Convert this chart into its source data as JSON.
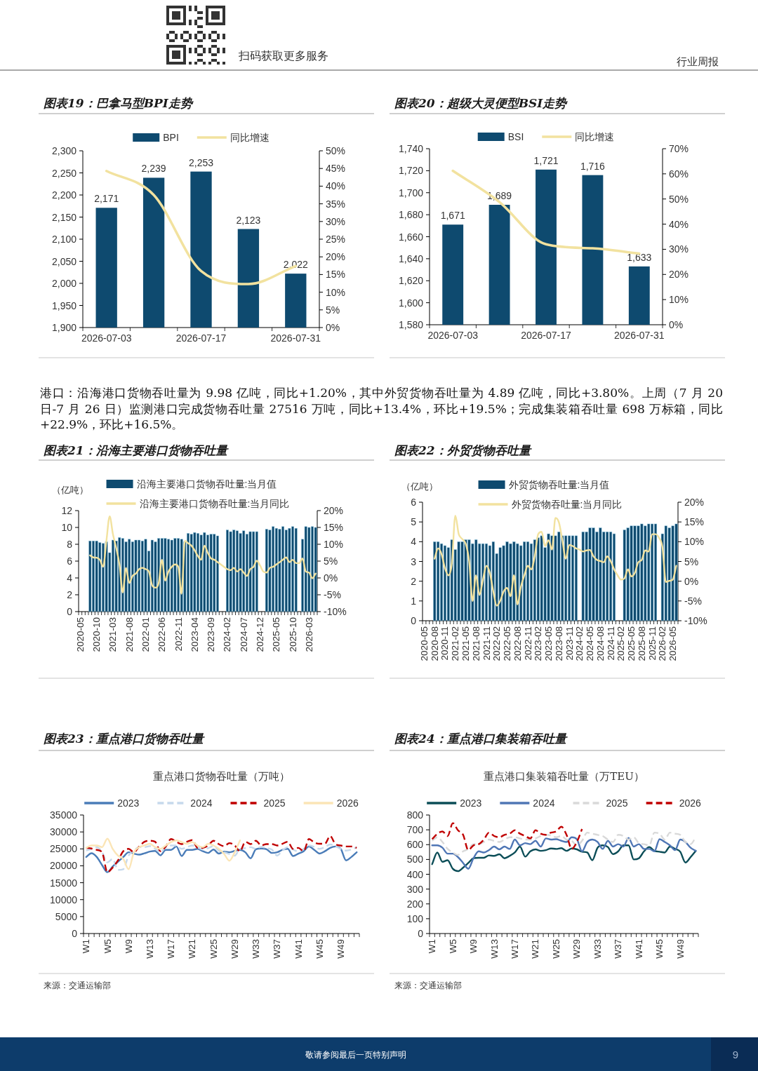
{
  "chart_data": [
    {
      "type": "other",
      "annotations": [
        "扫码获取更多服务",
        "行业周报"
      ]
    },
    {
      "type": "bar",
      "title": "图表19：巴拿马型BPI走势",
      "categories": [
        "2026-07-03",
        null,
        "2026-07-17",
        null,
        "2026-07-31"
      ],
      "series": [
        {
          "name": "BPI",
          "color": "#0e4a6f",
          "values": [
            2171,
            2239,
            2253,
            2123,
            2022
          ],
          "value_labels": [
            "2,171",
            "2,239",
            "2,253",
            "2,123",
            "2,022"
          ]
        },
        {
          "name": "同比增速",
          "type": "line",
          "axis": "y2",
          "color": "#f2e29f",
          "values": [
            44.3,
            37.5,
            16.0,
            12.3,
            17.4
          ]
        }
      ],
      "ylim": [
        1900,
        2300
      ],
      "yticks": [
        {
          "value": 1900,
          "label": "1,900"
        },
        {
          "value": 1950,
          "label": "1,950"
        },
        {
          "value": 2000,
          "label": "2,000"
        },
        {
          "value": 2050,
          "label": "2,050"
        },
        {
          "value": 2100,
          "label": "2,100"
        },
        {
          "value": 2150,
          "label": "2,150"
        },
        {
          "value": 2200,
          "label": "2,200"
        },
        {
          "value": 2250,
          "label": "2,250"
        },
        {
          "value": 2300,
          "label": "2,300"
        }
      ],
      "y2lim": [
        0,
        50
      ],
      "y2ticks": [
        {
          "value": 0,
          "label": "0%"
        },
        {
          "value": 5,
          "label": "5%"
        },
        {
          "value": 10,
          "label": "10%"
        },
        {
          "value": 15,
          "label": "15%"
        },
        {
          "value": 20,
          "label": "20%"
        },
        {
          "value": 25,
          "label": "25%"
        },
        {
          "value": 30,
          "label": "30%"
        },
        {
          "value": 35,
          "label": "35%"
        },
        {
          "value": 40,
          "label": "40%"
        },
        {
          "value": 45,
          "label": "45%"
        },
        {
          "value": 50,
          "label": "50%"
        }
      ],
      "legend": "top"
    },
    {
      "type": "bar",
      "title": "图表20：超级大灵便型BSI走势",
      "categories": [
        "2026-07-03",
        null,
        "2026-07-17",
        null,
        "2026-07-31"
      ],
      "series": [
        {
          "name": "BSI",
          "color": "#0e4a6f",
          "values": [
            1671,
            1689,
            1721,
            1716,
            1633
          ],
          "value_labels": [
            "1,671",
            "1,689",
            "1,721",
            "1,716",
            "1,633"
          ]
        },
        {
          "name": "同比增速",
          "type": "line",
          "axis": "y2",
          "color": "#f2e29f",
          "values": [
            61.2,
            48.8,
            32.0,
            30.4,
            28.3
          ]
        }
      ],
      "ylim": [
        1580,
        1740
      ],
      "yticks": [
        {
          "value": 1580,
          "label": "1,580"
        },
        {
          "value": 1600,
          "label": "1,600"
        },
        {
          "value": 1620,
          "label": "1,620"
        },
        {
          "value": 1640,
          "label": "1,640"
        },
        {
          "value": 1660,
          "label": "1,660"
        },
        {
          "value": 1680,
          "label": "1,680"
        },
        {
          "value": 1700,
          "label": "1,700"
        },
        {
          "value": 1720,
          "label": "1,720"
        },
        {
          "value": 1740,
          "label": "1,740"
        }
      ],
      "y2lim": [
        0,
        70
      ],
      "y2ticks": [
        {
          "value": 0,
          "label": "0%"
        },
        {
          "value": 10,
          "label": "10%"
        },
        {
          "value": 20,
          "label": "20%"
        },
        {
          "value": 30,
          "label": "30%"
        },
        {
          "value": 40,
          "label": "40%"
        },
        {
          "value": 50,
          "label": "50%"
        },
        {
          "value": 60,
          "label": "60%"
        },
        {
          "value": 70,
          "label": "70%"
        }
      ],
      "legend": "top"
    },
    {
      "type": "other",
      "annotations": [
        "港口：沿海港口货物吞吐量为 9.98 亿吨，同比+1.20%，其中外贸货物吞吐量为 4.89 亿吨，同比+3.80%。上周（7 月 20 日-7 月 26 日）监测港口完成货物吞吐量 27516 万吨，同比+13.4%，环比+19.5%；完成集装箱吞吐量 698 万标箱，同比+22.9%，环比+16.5%。"
      ]
    },
    {
      "type": "bar",
      "title": "图表21：沿海主要港口货物吞吐量",
      "ylabel": "（亿吨）",
      "categories": [
        "2020-05",
        null,
        null,
        null,
        null,
        "2020-10",
        null,
        null,
        null,
        null,
        "2021-03",
        null,
        null,
        null,
        null,
        "2021-08",
        null,
        null,
        null,
        null,
        "2022-01",
        null,
        null,
        null,
        null,
        "2022-06",
        null,
        null,
        null,
        null,
        "2022-11",
        null,
        null,
        null,
        null,
        "2023-04",
        null,
        null,
        null,
        null,
        "2023-09",
        null,
        null,
        null,
        null,
        "2024-02",
        null,
        null,
        null,
        null,
        "2024-07",
        null,
        null,
        null,
        null,
        "2024-12",
        null,
        null,
        null,
        null,
        "2025-05",
        null,
        null,
        null,
        null,
        "2025-10",
        null,
        null,
        null,
        null,
        "2026-03",
        null,
        null
      ],
      "series": [
        {
          "name": "沿海主要港口货物吞吐量:当月值",
          "color": "#0e4a6f",
          "values": [
            null,
            null,
            null,
            8.4,
            8.4,
            8.4,
            8.2,
            8.1,
            8.3,
            7.0,
            8.5,
            8.4,
            8.8,
            8.7,
            8.3,
            8.6,
            8.3,
            8.5,
            8.5,
            8.4,
            8.6,
            7.2,
            8.5,
            8.3,
            8.7,
            8.7,
            8.7,
            8.6,
            8.5,
            8.7,
            8.7,
            8.6,
            8.3,
            9.3,
            9.2,
            9.4,
            9.3,
            9.1,
            9.4,
            9.1,
            9.2,
            9.2,
            9.0,
            null,
            null,
            9.7,
            9.5,
            9.7,
            9.6,
            9.3,
            9.6,
            9.2,
            9.5,
            9.5,
            9.5,
            null,
            null,
            9.8,
            9.7,
            10.1,
            9.9,
            9.8,
            10.1,
            9.7,
            9.9,
            10.1,
            9.9,
            null,
            8.6,
            10.1,
            10.0,
            10.1,
            10.0
          ]
        },
        {
          "name": "沿海主要港口货物吞吐量:当月同比",
          "type": "line",
          "axis": "y2",
          "color": "#f2e29f",
          "values": [
            null,
            null,
            null,
            6.7,
            6.1,
            6.0,
            5.4,
            3.3,
            11.0,
            18.3,
            13.0,
            8.9,
            4.0,
            -4.3,
            3.0,
            -1.5,
            0.6,
            1.3,
            2.6,
            3.0,
            2.6,
            1.9,
            -2.2,
            -2.9,
            -1.5,
            5.4,
            -0.8,
            1.9,
            3.3,
            4.0,
            3.3,
            -4.7,
            11.0,
            10.3,
            9.6,
            8.2,
            6.5,
            5.4,
            9.6,
            7.5,
            5.8,
            5.4,
            4.7,
            4.0,
            3.3,
            2.6,
            2.3,
            3.0,
            1.9,
            2.6,
            1.6,
            0.6,
            2.6,
            3.3,
            5.1,
            3.7,
            1.9,
            1.6,
            3.0,
            3.3,
            4.0,
            4.7,
            5.4,
            6.1,
            4.7,
            5.4,
            4.4,
            4.4,
            5.8,
            1.9,
            1.6,
            -0.1,
            1.3
          ]
        }
      ],
      "ylim": [
        0,
        12
      ],
      "yticks": [
        0,
        2,
        4,
        6,
        8,
        10,
        12
      ],
      "y2lim": [
        -10,
        20
      ],
      "y2ticks": [
        {
          "value": -10,
          "label": "-10%"
        },
        {
          "value": -5,
          "label": "-5%"
        },
        {
          "value": 0,
          "label": "0%"
        },
        {
          "value": 5,
          "label": "5%"
        },
        {
          "value": 10,
          "label": "10%"
        },
        {
          "value": 15,
          "label": "15%"
        },
        {
          "value": 20,
          "label": "20%"
        }
      ],
      "legend": "top"
    },
    {
      "type": "bar",
      "title": "图表22：外贸货物吞吐量",
      "ylabel": "（亿吨）",
      "categories": [
        "2020-05",
        null,
        null,
        "2020-08",
        null,
        null,
        "2020-11",
        null,
        null,
        "2021-02",
        null,
        null,
        "2021-05",
        null,
        null,
        "2021-08",
        null,
        null,
        "2021-11",
        null,
        null,
        "2022-02",
        null,
        null,
        "2022-05",
        null,
        null,
        "2022-08",
        null,
        null,
        "2022-11",
        null,
        null,
        "2023-02",
        null,
        null,
        "2023-05",
        null,
        null,
        "2023-08",
        null,
        null,
        "2023-11",
        null,
        null,
        "2024-02",
        null,
        null,
        "2024-05",
        null,
        null,
        "2024-08",
        null,
        null,
        "2024-11",
        null,
        null,
        "2025-02",
        null,
        null,
        "2025-05",
        null,
        null,
        "2025-08",
        null,
        null,
        "2025-11",
        null,
        null,
        "2026-02",
        null,
        null,
        "2026-05",
        null
      ],
      "series": [
        {
          "name": "外贸货物吞吐量:当月值",
          "color": "#0e4a6f",
          "values": [
            null,
            null,
            null,
            4.0,
            4.0,
            3.9,
            3.8,
            3.7,
            4.1,
            3.6,
            4.0,
            4.0,
            4.1,
            4.1,
            3.9,
            4.1,
            3.9,
            3.9,
            3.9,
            3.8,
            4.0,
            3.4,
            3.7,
            3.8,
            4.0,
            3.9,
            4.0,
            3.9,
            3.8,
            4.0,
            4.0,
            3.9,
            4.1,
            4.2,
            4.3,
            3.7,
            4.4,
            4.3,
            4.3,
            4.5,
            4.3,
            4.3,
            4.3,
            4.3,
            4.3,
            null,
            4.5,
            4.5,
            4.7,
            4.7,
            4.5,
            4.7,
            4.5,
            4.5,
            4.5,
            4.4,
            null,
            null,
            4.6,
            4.7,
            4.8,
            4.8,
            4.8,
            4.9,
            4.8,
            4.9,
            4.9,
            4.9,
            null,
            4.4,
            4.8,
            4.7,
            4.8,
            4.9
          ]
        },
        {
          "name": "外贸货物吞吐量:当月同比",
          "type": "line",
          "axis": "y2",
          "color": "#f2e29f",
          "values": [
            null,
            null,
            null,
            5.7,
            8.3,
            6.9,
            3.3,
            1.5,
            4.5,
            16.6,
            11.9,
            10.7,
            9.5,
            5.1,
            -5.0,
            1.5,
            -3.5,
            0.4,
            3.9,
            2.1,
            -2.6,
            -6.2,
            -5.0,
            -2.6,
            -1.7,
            -3.8,
            1.5,
            -5.9,
            -1.4,
            1.5,
            3.9,
            3.0,
            6.3,
            11.9,
            12.5,
            8.9,
            10.4,
            8.0,
            16.0,
            14.9,
            10.4,
            5.7,
            9.2,
            8.9,
            8.3,
            8.0,
            7.5,
            7.8,
            7.9,
            6.3,
            5.4,
            5.1,
            4.8,
            6.3,
            5.1,
            3.0,
            1.5,
            0.4,
            0.7,
            3.0,
            1.2,
            2.1,
            4.8,
            5.4,
            7.8,
            7.5,
            11.9,
            11.9,
            11.0,
            8.6,
            -0.2,
            0.1,
            0.4,
            3.9
          ]
        }
      ],
      "ylim": [
        0,
        6
      ],
      "yticks": [
        0,
        1,
        2,
        3,
        4,
        5,
        6
      ],
      "y2lim": [
        -10,
        20
      ],
      "y2ticks": [
        {
          "value": -10,
          "label": "-10%"
        },
        {
          "value": -5,
          "label": "-5%"
        },
        {
          "value": 0,
          "label": "0%"
        },
        {
          "value": 5,
          "label": "5%"
        },
        {
          "value": 10,
          "label": "10%"
        },
        {
          "value": 15,
          "label": "15%"
        },
        {
          "value": 20,
          "label": "20%"
        }
      ],
      "legend": "top"
    },
    {
      "type": "line",
      "title": "图表23：重点港口货物吞吐量",
      "subtitle": "重点港口货物吞吐量（万吨）",
      "categories": [
        "W1",
        null,
        null,
        null,
        "W5",
        null,
        null,
        null,
        "W9",
        null,
        null,
        null,
        "W13",
        null,
        null,
        null,
        "W17",
        null,
        null,
        null,
        "W21",
        null,
        null,
        null,
        "W25",
        null,
        null,
        null,
        "W29",
        null,
        null,
        null,
        "W33",
        null,
        null,
        null,
        "W37",
        null,
        null,
        null,
        "W41",
        null,
        null,
        null,
        "W45",
        null,
        null,
        null,
        "W49",
        null,
        null,
        null
      ],
      "series": [
        {
          "name": "2023",
          "color": "#4a7cb8",
          "values": [
            22600,
            23700,
            22600,
            20200,
            18100,
            19800,
            21200,
            22600,
            24000,
            23600,
            23300,
            23700,
            24200,
            24400,
            23100,
            24700,
            24700,
            25700,
            22900,
            24700,
            24700,
            25000,
            24300,
            23800,
            24800,
            23600,
            24200,
            24000,
            24400,
            24700,
            24000,
            22200,
            24900,
            25100,
            24900,
            23800,
            24000,
            24700,
            25000,
            22900,
            23600,
            24300,
            25700,
            24700,
            23600,
            24300,
            25300,
            25700,
            25000,
            21600,
            22600,
            24000
          ]
        },
        {
          "name": "2024",
          "color": "#c6d9ec",
          "line_style": "dashed",
          "values": [
            24500,
            25000,
            25500,
            24000,
            21000,
            22000,
            18800,
            19000,
            23000,
            24500,
            25500,
            25500,
            25800,
            25000,
            24000,
            25500,
            26000,
            26000,
            25000,
            25500,
            26000,
            25500,
            24800,
            25200,
            25800,
            24500,
            24000,
            23500,
            23000,
            25000,
            25200,
            25500,
            25000,
            25600,
            25200,
            24800,
            23000,
            24500,
            25500,
            24800,
            24200,
            25000,
            26000,
            25600,
            25000,
            25500,
            26300,
            25800,
            25000,
            24500,
            24800,
            25500
          ]
        },
        {
          "name": "2025",
          "color": "#c00000",
          "line_style": "dashed",
          "values": [
            25300,
            25100,
            24700,
            24000,
            18100,
            19500,
            21600,
            24300,
            25000,
            24000,
            25700,
            27100,
            27400,
            27100,
            24300,
            25700,
            27900,
            27100,
            26400,
            27100,
            27600,
            25300,
            25300,
            26000,
            27400,
            26400,
            25800,
            26700,
            26000,
            24300,
            27100,
            26400,
            27400,
            26000,
            26400,
            26400,
            26000,
            26500,
            27100,
            25000,
            25300,
            24300,
            27900,
            26900,
            26500,
            26500,
            28800,
            26400,
            26000,
            25700,
            25700,
            25300
          ]
        },
        {
          "name": "2026",
          "color": "#fbe5b6",
          "values": [
            25300,
            26000,
            26000,
            25500,
            28000,
            25000,
            23000,
            22000,
            19000,
            24000,
            25500,
            26000,
            26500,
            25500,
            25000,
            26000,
            27000,
            27500,
            27000,
            26500,
            27000,
            26000,
            25500,
            26500,
            26000,
            25000,
            23500,
            21500,
            24000,
            27500,
            null,
            null,
            null,
            null,
            null,
            null,
            null,
            null,
            null,
            null,
            null,
            null,
            null,
            null,
            null,
            null,
            null,
            null,
            null,
            null,
            null,
            null
          ]
        }
      ],
      "ylim": [
        0,
        35000
      ],
      "yticks": [
        0,
        5000,
        10000,
        15000,
        20000,
        25000,
        30000,
        35000
      ],
      "legend": "top",
      "annotations": [
        "来源：交通运输部"
      ]
    },
    {
      "type": "line",
      "title": "图表24：重点港口集装箱吞吐量",
      "subtitle": "重点港口集装箱吞吐量（万TEU）",
      "categories": [
        "W1",
        null,
        null,
        null,
        "W5",
        null,
        null,
        null,
        "W9",
        null,
        null,
        null,
        "W13",
        null,
        null,
        null,
        "W17",
        null,
        null,
        null,
        "W21",
        null,
        null,
        null,
        "W25",
        null,
        null,
        null,
        "W29",
        null,
        null,
        null,
        "W33",
        null,
        null,
        null,
        "W37",
        null,
        null,
        null,
        "W41",
        null,
        null,
        null,
        "W45",
        null,
        null,
        null,
        "W49",
        null,
        null,
        null
      ],
      "series": [
        {
          "name": "2023",
          "color": "#0b4d57",
          "values": [
            468,
            547,
            484,
            495,
            437,
            421,
            445,
            476,
            508,
            511,
            511,
            527,
            524,
            535,
            508,
            524,
            547,
            587,
            519,
            555,
            568,
            558,
            563,
            574,
            571,
            576,
            558,
            574,
            568,
            552,
            547,
            495,
            579,
            595,
            584,
            536,
            555,
            595,
            595,
            500,
            508,
            555,
            584,
            558,
            552,
            547,
            587,
            571,
            552,
            479,
            516,
            558
          ]
        },
        {
          "name": "2024",
          "color": "#4f76b5",
          "values": [
            595,
            595,
            579,
            539,
            539,
            516,
            476,
            437,
            508,
            555,
            547,
            563,
            587,
            568,
            587,
            571,
            634,
            595,
            610,
            603,
            626,
            587,
            642,
            634,
            637,
            626,
            618,
            650,
            637,
            555,
            618,
            634,
            618,
            571,
            626,
            587,
            603,
            587,
            645,
            587,
            603,
            571,
            571,
            555,
            637,
            618,
            595,
            563,
            634,
            618,
            579,
            558
          ]
        },
        {
          "name": "2025",
          "color": "#d9d9d9",
          "line_style": "dashed",
          "values": [
            626,
            650,
            618,
            571,
            547,
            531,
            555,
            571,
            603,
            603,
            618,
            634,
            626,
            618,
            634,
            650,
            650,
            642,
            634,
            634,
            642,
            658,
            666,
            662,
            650,
            658,
            634,
            626,
            595,
            626,
            681,
            674,
            666,
            658,
            634,
            618,
            666,
            658,
            634,
            650,
            610,
            603,
            595,
            681,
            674,
            634,
            681,
            674,
            666,
            618,
            603,
            650
          ]
        },
        {
          "name": "2026",
          "color": "#c00000",
          "line_style": "dashed",
          "values": [
            637,
            673,
            689,
            658,
            745,
            697,
            666,
            563,
            595,
            603,
            634,
            681,
            658,
            650,
            666,
            674,
            697,
            674,
            658,
            642,
            697,
            674,
            666,
            681,
            689,
            721,
            666,
            571,
            618,
            705,
            null,
            null,
            null,
            null,
            null,
            null,
            null,
            null,
            null,
            null,
            null,
            null,
            null,
            null,
            null,
            null,
            null,
            null,
            null,
            null,
            null,
            null
          ]
        }
      ],
      "ylim": [
        0,
        800
      ],
      "yticks": [
        0,
        100,
        200,
        300,
        400,
        500,
        600,
        700,
        800
      ],
      "legend": "top",
      "annotations": [
        "来源：交通运输部"
      ]
    },
    {
      "type": "other",
      "annotations": [
        "敬请参阅最后一页特别声明",
        "9"
      ]
    }
  ]
}
